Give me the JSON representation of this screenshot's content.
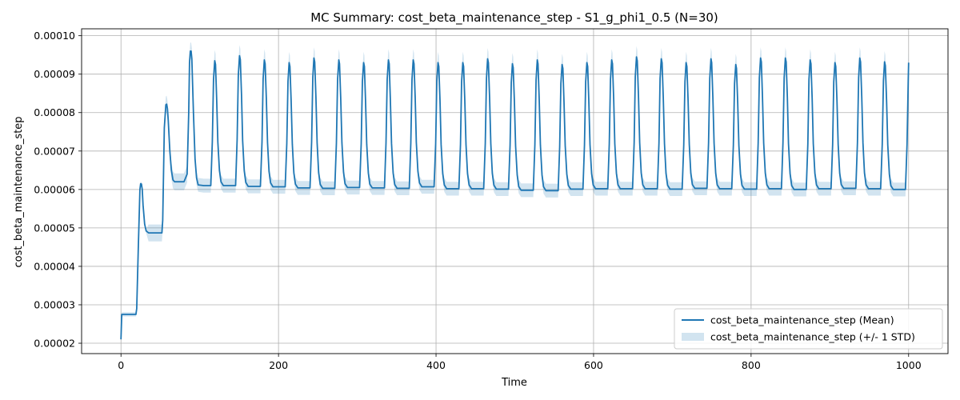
{
  "chart_data": {
    "type": "line",
    "title": "MC Summary: cost_beta_maintenance_step - S1_g_phi1_0.5 (N=30)",
    "xlabel": "Time",
    "ylabel": "cost_beta_maintenance_step",
    "xlim": [
      -50,
      1050
    ],
    "ylim": [
      1.73e-05,
      0.0001018
    ],
    "x_ticks": [
      0,
      200,
      400,
      600,
      800,
      1000
    ],
    "x_tick_labels": [
      "0",
      "200",
      "400",
      "600",
      "800",
      "1000"
    ],
    "y_ticks": [
      2e-05,
      3e-05,
      4e-05,
      5e-05,
      6e-05,
      7e-05,
      8e-05,
      9e-05,
      0.0001
    ],
    "y_tick_labels": [
      "0.00002",
      "0.00003",
      "0.00004",
      "0.00005",
      "0.00006",
      "0.00007",
      "0.00008",
      "0.00009",
      "0.00010"
    ],
    "grid": true,
    "legend_position": "lower-right",
    "series": [
      {
        "name": "cost_beta_maintenance_step (Mean)",
        "kind": "line",
        "color": "#1f77b4",
        "x": [
          0,
          1,
          2,
          19,
          20,
          22,
          24,
          25,
          26,
          27,
          28,
          30,
          32,
          35,
          52,
          53,
          55,
          57,
          58,
          59,
          60,
          61,
          62,
          64,
          66,
          68,
          80,
          84,
          86,
          87,
          88,
          89,
          90,
          92,
          94,
          96,
          98,
          105
        ],
        "y": [
          2.1e-05,
          2.75e-05,
          2.75e-05,
          2.75e-05,
          2.9e-05,
          4.5e-05,
          6e-05,
          6.15e-05,
          6.14e-05,
          6e-05,
          5.6e-05,
          5.1e-05,
          4.92e-05,
          4.87e-05,
          4.87e-05,
          5.2e-05,
          7.6e-05,
          8.2e-05,
          8.22e-05,
          8.1e-05,
          7.8e-05,
          7.4e-05,
          7e-05,
          6.5e-05,
          6.25e-05,
          6.2e-05,
          6.2e-05,
          6.4e-05,
          8e-05,
          9.3e-05,
          9.6e-05,
          9.6e-05,
          9.4e-05,
          8e-05,
          6.8e-05,
          6.3e-05,
          6.12e-05,
          6.1e-05
        ],
        "cycle_peaks": [
          9.35e-05,
          9.48e-05,
          9.37e-05,
          9.3e-05,
          9.42e-05,
          9.37e-05,
          9.3e-05,
          9.37e-05,
          9.37e-05,
          9.3e-05,
          9.3e-05,
          9.4e-05,
          9.27e-05,
          9.37e-05,
          9.25e-05,
          9.3e-05,
          9.37e-05,
          9.45e-05,
          9.4e-05,
          9.3e-05,
          9.4e-05,
          9.25e-05,
          9.42e-05,
          9.42e-05,
          9.37e-05,
          9.3e-05,
          9.42e-05,
          9.32e-05,
          9.35e-05
        ],
        "cycle_baselines": [
          6.1e-05,
          6.08e-05,
          6.07e-05,
          6.04e-05,
          6.03e-05,
          6.05e-05,
          6.04e-05,
          6.03e-05,
          6.07e-05,
          6.02e-05,
          6.02e-05,
          6.01e-05,
          5.98e-05,
          5.97e-05,
          6.01e-05,
          6.02e-05,
          6.02e-05,
          6.02e-05,
          6.01e-05,
          6.03e-05,
          6.02e-05,
          6.01e-05,
          6.02e-05,
          6e-05,
          6.02e-05,
          6.03e-05,
          6.02e-05,
          6e-05,
          5.99e-05
        ],
        "cycle_period": 31.5,
        "first_cycle_peak_time": 119,
        "last_time": 1000,
        "last_value": 9.3e-05
      },
      {
        "name": "cost_beta_maintenance_step (+/- 1 STD)",
        "kind": "band",
        "color": "#1f77b4",
        "opacity": 0.2,
        "std_baseline": 1.8e-06,
        "std_peak": 2.8e-06,
        "std_early": 2.2e-06
      }
    ]
  }
}
